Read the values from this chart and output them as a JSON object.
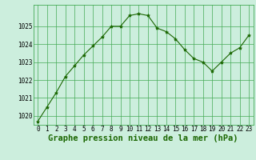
{
  "x": [
    0,
    1,
    2,
    3,
    4,
    5,
    6,
    7,
    8,
    9,
    10,
    11,
    12,
    13,
    14,
    15,
    16,
    17,
    18,
    19,
    20,
    21,
    22,
    23
  ],
  "y": [
    1019.7,
    1020.5,
    1021.3,
    1022.2,
    1022.8,
    1023.4,
    1023.9,
    1024.4,
    1025.0,
    1025.0,
    1025.6,
    1025.7,
    1025.6,
    1024.9,
    1024.7,
    1024.3,
    1023.7,
    1023.2,
    1023.0,
    1022.5,
    1023.0,
    1023.5,
    1023.8,
    1024.5
  ],
  "line_color": "#1a6600",
  "marker": "*",
  "marker_size": 3,
  "background_color": "#cceedd",
  "grid_color": "#44aa55",
  "xlabel": "Graphe pression niveau de la mer (hPa)",
  "ylim": [
    1019.5,
    1026.2
  ],
  "yticks": [
    1020,
    1021,
    1022,
    1023,
    1024,
    1025
  ],
  "xticks": [
    0,
    1,
    2,
    3,
    4,
    5,
    6,
    7,
    8,
    9,
    10,
    11,
    12,
    13,
    14,
    15,
    16,
    17,
    18,
    19,
    20,
    21,
    22,
    23
  ],
  "tick_fontsize": 5.5,
  "label_fontsize": 7.5
}
